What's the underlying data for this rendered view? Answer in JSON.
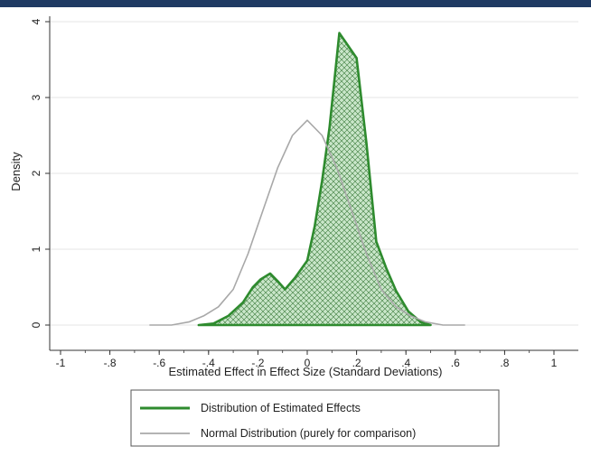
{
  "chart_data": {
    "type": "area",
    "title": "",
    "xlabel": "Estimated Effect in Effect Size (Standard Deviations)",
    "ylabel": "Density",
    "xlim": [
      -1,
      1
    ],
    "ylim": [
      0,
      4
    ],
    "x_ticks": [
      -1,
      -0.8,
      -0.6,
      -0.4,
      -0.2,
      0,
      0.2,
      0.4,
      0.6,
      0.8,
      1
    ],
    "x_tick_labels": [
      "-1",
      "-.8",
      "-.6",
      "-.4",
      "-.2",
      "0",
      ".2",
      ".4",
      ".6",
      ".8",
      "1"
    ],
    "y_ticks": [
      0,
      1,
      2,
      3,
      4
    ],
    "y_tick_labels": [
      "0",
      "1",
      "2",
      "3",
      "4"
    ],
    "grid": true,
    "legend_position": "bottom",
    "series": [
      {
        "name": "Distribution of Estimated Effects",
        "style": "filled-area",
        "color": "#2e8b2e",
        "fill_color": "#c9e6c9",
        "points": [
          [
            -0.44,
            0.0
          ],
          [
            -0.38,
            0.02
          ],
          [
            -0.32,
            0.12
          ],
          [
            -0.26,
            0.3
          ],
          [
            -0.22,
            0.5
          ],
          [
            -0.19,
            0.6
          ],
          [
            -0.15,
            0.68
          ],
          [
            -0.12,
            0.58
          ],
          [
            -0.09,
            0.47
          ],
          [
            -0.05,
            0.62
          ],
          [
            0.0,
            0.85
          ],
          [
            0.03,
            1.3
          ],
          [
            0.06,
            1.9
          ],
          [
            0.09,
            2.6
          ],
          [
            0.13,
            3.85
          ],
          [
            0.2,
            3.52
          ],
          [
            0.24,
            2.4
          ],
          [
            0.28,
            1.1
          ],
          [
            0.32,
            0.75
          ],
          [
            0.36,
            0.45
          ],
          [
            0.41,
            0.18
          ],
          [
            0.46,
            0.04
          ],
          [
            0.5,
            0.0
          ]
        ]
      },
      {
        "name": "Normal Distribution (purely for comparison)",
        "style": "line",
        "color": "#a8a8a8",
        "points": [
          [
            -0.64,
            0.0
          ],
          [
            -0.55,
            0.0
          ],
          [
            -0.48,
            0.04
          ],
          [
            -0.42,
            0.12
          ],
          [
            -0.36,
            0.24
          ],
          [
            -0.3,
            0.47
          ],
          [
            -0.24,
            0.94
          ],
          [
            -0.18,
            1.51
          ],
          [
            -0.12,
            2.07
          ],
          [
            -0.06,
            2.5
          ],
          [
            0.0,
            2.7
          ],
          [
            0.06,
            2.5
          ],
          [
            0.12,
            2.07
          ],
          [
            0.18,
            1.51
          ],
          [
            0.24,
            0.94
          ],
          [
            0.3,
            0.47
          ],
          [
            0.36,
            0.24
          ],
          [
            0.42,
            0.12
          ],
          [
            0.48,
            0.04
          ],
          [
            0.55,
            0.0
          ],
          [
            0.64,
            0.0
          ]
        ]
      }
    ]
  }
}
